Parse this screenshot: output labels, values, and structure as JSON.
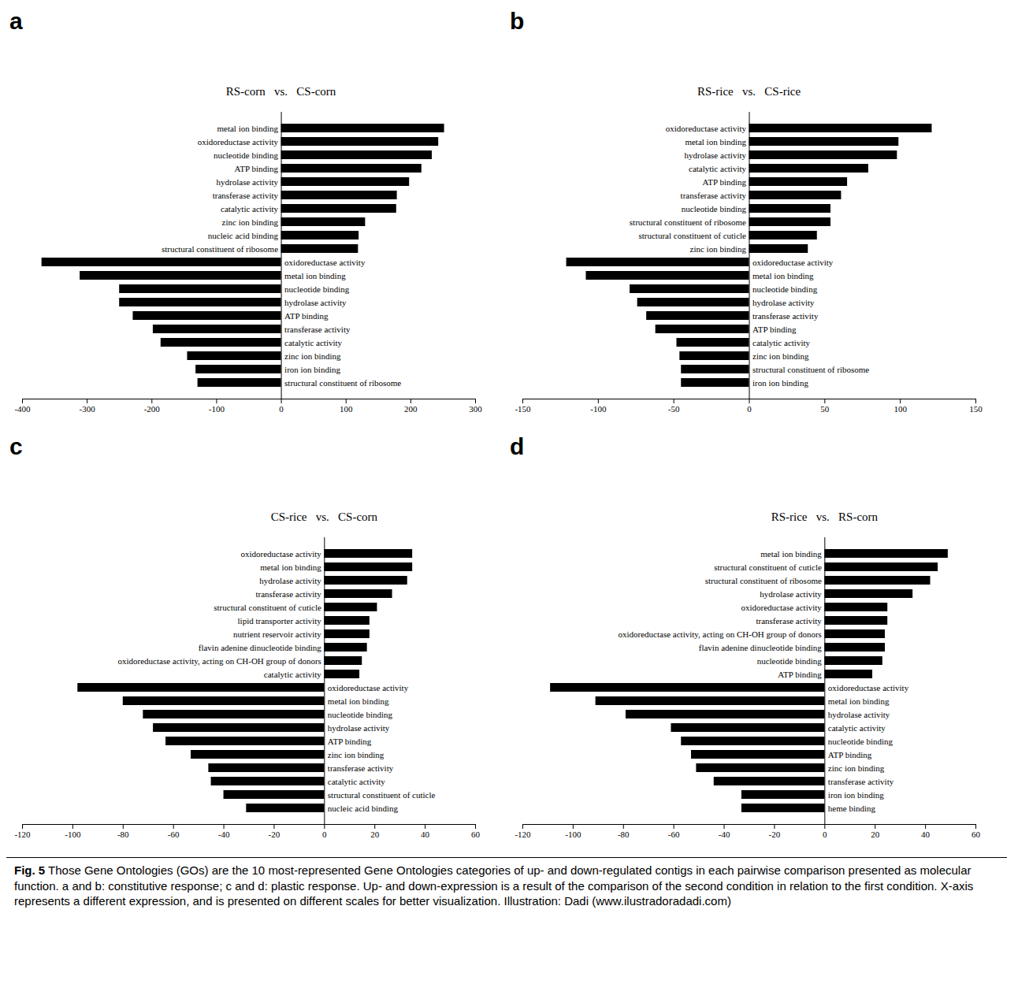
{
  "caption_label": "Fig. 5",
  "caption": "Those Gene Ontologies (GOs) are the 10 most-represented Gene Ontologies categories of up- and down-regulated contigs in each pairwise comparison presented as molecular function. a and b: constitutive response; c and d: plastic response. Up- and down-expression is a result of the comparison of the second condition in relation to the first condition. X-axis represents a different expression, and is presented on different scales for better visualization. Illustration: Dadi (www.ilustradoradadi.com)",
  "chart_data": [
    {
      "type": "bar",
      "panel": "a",
      "title": "RS-corn   vs.   CS-corn",
      "orientation": "horizontal",
      "tick_labels": "x",
      "color": "#000000",
      "categories": [
        "metal ion binding",
        "oxidoreductase activity",
        "nucleotide binding",
        "ATP binding",
        "hydrolase activity",
        "transferase activity",
        "catalytic activity",
        "zinc ion binding",
        "nucleic acid binding",
        "structural constituent of ribosome",
        "oxidoreductase activity",
        "metal ion binding",
        "nucleotide binding",
        "hydrolase activity",
        "ATP binding",
        "transferase activity",
        "catalytic activity",
        "zinc ion binding",
        "iron ion binding",
        "structural constituent of ribosome"
      ],
      "values": [
        252,
        243,
        233,
        217,
        198,
        179,
        178,
        130,
        120,
        119,
        -370,
        -311,
        -250,
        -250,
        -229,
        -198,
        -186,
        -145,
        -132,
        -129
      ],
      "xlim": [
        -400,
        300
      ],
      "xticks": [
        -400,
        -300,
        -200,
        -100,
        0,
        100,
        200,
        300
      ]
    },
    {
      "type": "bar",
      "panel": "b",
      "title": "RS-rice   vs.   CS-rice",
      "orientation": "horizontal",
      "tick_labels": "x",
      "color": "#000000",
      "categories": [
        "oxidoreductase activity",
        "metal ion binding",
        "hydrolase activity",
        "catalytic activity",
        "ATP binding",
        "transferase activity",
        "nucleotide binding",
        "structural constituent of ribosome",
        "structural constituent of cuticle",
        "zinc ion binding",
        "oxidoreductase activity",
        "metal ion binding",
        "nucleotide binding",
        "hydrolase activity",
        "transferase activity",
        "ATP binding",
        "catalytic activity",
        "zinc ion binding",
        "structural constituent of ribosome",
        "iron ion binding"
      ],
      "values": [
        121,
        99,
        98,
        79,
        65,
        61,
        54,
        54,
        45,
        39,
        -121,
        -108,
        -79,
        -74,
        -68,
        -62,
        -48,
        -46,
        -45,
        -45
      ],
      "xlim": [
        -150,
        150
      ],
      "xticks": [
        -150,
        -100,
        -50,
        0,
        50,
        100,
        150
      ]
    },
    {
      "type": "bar",
      "panel": "c",
      "title": "CS-rice   vs.   CS-corn",
      "orientation": "horizontal",
      "tick_labels": "x",
      "color": "#000000",
      "categories": [
        "oxidoreductase activity",
        "metal ion binding",
        "hydrolase activity",
        "transferase activity",
        "structural constituent of cuticle",
        "lipid transporter activity",
        "nutrient reservoir activity",
        "flavin adenine dinucleotide binding",
        "oxidoreductase activity, acting on CH-OH group of donors",
        "catalytic activity",
        "oxidoreductase activity",
        "metal ion binding",
        "nucleotide binding",
        "hydrolase activity",
        "ATP binding",
        "zinc ion binding",
        "transferase activity",
        "catalytic activity",
        "structural constituent of cuticle",
        "nucleic acid binding"
      ],
      "values": [
        35,
        35,
        33,
        27,
        21,
        18,
        18,
        17,
        15,
        14,
        -98,
        -80,
        -72,
        -68,
        -63,
        -53,
        -46,
        -45,
        -40,
        -31
      ],
      "xlim": [
        -120,
        60
      ],
      "xticks": [
        -120,
        -100,
        -80,
        -60,
        -40,
        -20,
        0,
        20,
        40,
        60
      ]
    },
    {
      "type": "bar",
      "panel": "d",
      "title": "RS-rice   vs.   RS-corn",
      "orientation": "horizontal",
      "tick_labels": "x",
      "color": "#000000",
      "categories": [
        "metal ion binding",
        "structural constituent of cuticle",
        "structural constituent of ribosome",
        "hydrolase activity",
        "oxidoreductase activity",
        "transferase activity",
        "oxidoreductase activity, acting on CH-OH group of donors",
        "flavin adenine dinucleotide binding",
        "nucleotide binding",
        "ATP binding",
        "oxidoreductase activity",
        "metal ion binding",
        "hydrolase activity",
        "catalytic activity",
        "nucleotide binding",
        "ATP binding",
        "zinc ion binding",
        "transferase activity",
        "iron ion binding",
        "heme binding"
      ],
      "values": [
        49,
        45,
        42,
        35,
        25,
        25,
        24,
        24,
        23,
        19,
        -109,
        -91,
        -79,
        -61,
        -57,
        -53,
        -51,
        -44,
        -33,
        -33
      ],
      "xlim": [
        -120,
        60
      ],
      "xticks": [
        -120,
        -100,
        -80,
        -60,
        -40,
        -20,
        0,
        20,
        40,
        60
      ]
    }
  ]
}
